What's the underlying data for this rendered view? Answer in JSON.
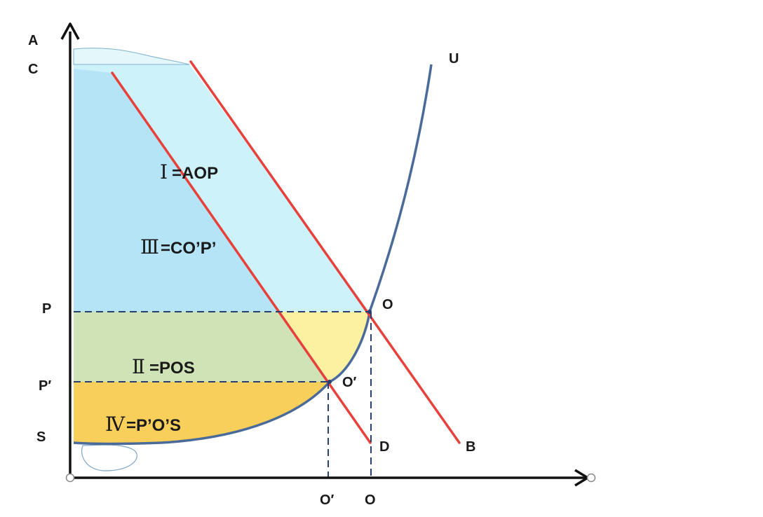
{
  "labels": {
    "a": "A",
    "c": "C",
    "p": "P",
    "p_prime": "P′",
    "s": "S",
    "u": "U",
    "o_point": "O",
    "o_prime_point": "O′",
    "d": "D",
    "b": "B",
    "x_o_prime": "O′",
    "x_o": "O"
  },
  "regions": {
    "aop": {
      "roman": "Ⅰ",
      "text": "=AOP"
    },
    "pos": {
      "roman": "Ⅱ",
      "text": "=POS"
    },
    "cop": {
      "roman": "Ⅲ",
      "text": "=CO’P’"
    },
    "pos_prime": {
      "roman": "Ⅳ",
      "text": "=P’O’S"
    }
  },
  "colors": {
    "demand_lines": "#e8403a",
    "supply_curve": "#4a6a9a",
    "axes": "#111111",
    "guides": "#2a3f70",
    "region_aop": "#cdf2fa",
    "region_cop": "#b4e4f6",
    "region_pos_green": "#cfe3b6",
    "region_pos_yellow": "#fbf1a0",
    "region_pos_prime": "#f8cf5a"
  }
}
